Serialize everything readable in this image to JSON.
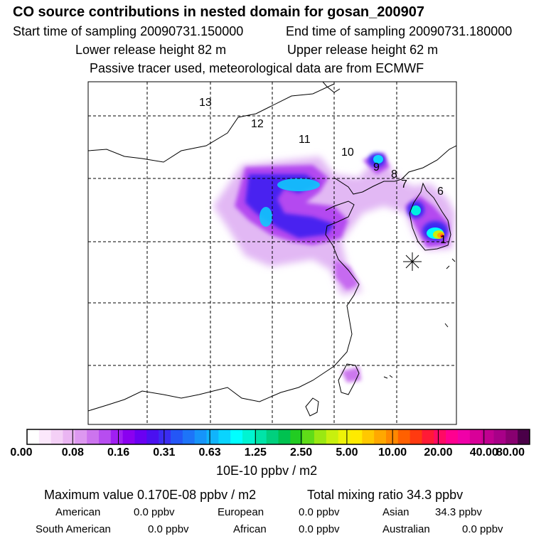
{
  "title": "CO  source contributions in nested domain for gosan_200907",
  "sampling": {
    "start": "Start time of sampling 20090731.150000",
    "end": "End time of sampling 20090731.180000"
  },
  "release": {
    "lower": "Lower release height   82 m",
    "upper": "Upper release height   62 m"
  },
  "note": "Passive tracer used, meteorological data are from ECMWF",
  "chart_data": {
    "type": "heatmap",
    "region_labels": [
      "13",
      "12",
      "11",
      "10",
      "9",
      "8",
      "7",
      "6",
      "1"
    ],
    "colorbar": {
      "unit": "10E-10 ppbv / m2",
      "levels": [
        "0.00",
        "0.08",
        "0.16",
        "0.31",
        "0.63",
        "1.25",
        "2.50",
        "5.00",
        "10.00",
        "20.00",
        "40.00",
        "80.00"
      ],
      "colors": [
        "#ffffff",
        "#fbe8fb",
        "#f4d0f6",
        "#eab5f2",
        "#dd98f0",
        "#cc74ee",
        "#b74df0",
        "#a01ff2",
        "#8a00f0",
        "#6a00f2",
        "#4a10f0",
        "#3a2cf2",
        "#2456f6",
        "#1d74f8",
        "#1694fa",
        "#10b4fc",
        "#0ad4fe",
        "#00ffff",
        "#00f4d2",
        "#00e4a8",
        "#00d07e",
        "#00c250",
        "#22cc22",
        "#60dc18",
        "#9ae812",
        "#c8f00e",
        "#eef208",
        "#ffea00",
        "#ffc800",
        "#ffa800",
        "#ff8800",
        "#ff6000",
        "#ff3a10",
        "#ff1a36",
        "#ff0a64",
        "#ff0090",
        "#f000a8",
        "#d80098",
        "#c00090",
        "#a80088",
        "#880070",
        "#4a0048"
      ]
    },
    "max_value": "Maximum value  0.170E-08 ppbv / m2",
    "total_mixing": "Total mixing ratio       34.3 ppbv",
    "regions": [
      {
        "name": "American",
        "value": "0.0 ppbv"
      },
      {
        "name": "European",
        "value": "0.0 ppbv"
      },
      {
        "name": "Asian",
        "value": "34.3 ppbv"
      },
      {
        "name": "South American",
        "value": "0.0 ppbv"
      },
      {
        "name": "African",
        "value": "0.0 ppbv"
      },
      {
        "name": "Australian",
        "value": "0.0 ppbv"
      }
    ]
  }
}
